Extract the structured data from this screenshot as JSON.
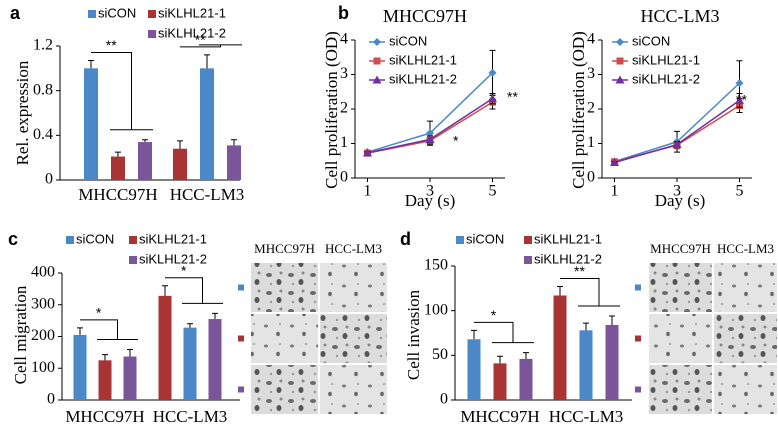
{
  "chart_data": [
    {
      "type": "bar",
      "panel": "a",
      "ylabel": "Rel. expression",
      "categories": [
        "MHCC97H",
        "HCC-LM3"
      ],
      "ylim": [
        0,
        1.2
      ],
      "yticks": [
        0,
        0.4,
        0.8,
        1.2
      ],
      "annotations": [
        "**",
        "**"
      ],
      "series": [
        {
          "name": "siCON",
          "color": "#4a88c7",
          "colors": [
            "#4a88c7",
            "#a83434"
          ],
          "values": [
            1.0,
            0.28
          ],
          "errors": [
            0.07,
            0.07
          ]
        },
        {
          "name": "siKLHL21-1",
          "color": "#a83434",
          "colors": [
            "#a83434",
            "#4a88c7"
          ],
          "values": [
            0.21,
            1.0
          ],
          "errors": [
            0.04,
            0.12
          ]
        },
        {
          "name": "siKLHL21-2",
          "color": "#7b559a",
          "colors": [
            "#7b559a",
            "#7b559a"
          ],
          "values": [
            0.34,
            0.31
          ],
          "errors": [
            0.02,
            0.05
          ]
        }
      ]
    },
    {
      "type": "line",
      "panel": "b",
      "title": "MHCC97H",
      "xlabel": "Day (s)",
      "ylabel": "Cell proliferation (OD)",
      "x": [
        1,
        3,
        5
      ],
      "xlim": [
        0.6,
        5.4
      ],
      "xticks": [
        1,
        3,
        5
      ],
      "ylim": [
        0,
        4
      ],
      "yticks": [
        0,
        1,
        2,
        3,
        4
      ],
      "annotations": [
        "*",
        "**"
      ],
      "series": [
        {
          "name": "siCON",
          "color": "#4a88c7",
          "marker": "diamond",
          "values": [
            0.75,
            1.3,
            3.05
          ],
          "errors": [
            0.05,
            0.35,
            0.65
          ]
        },
        {
          "name": "siKLHL21-1",
          "color": "#d24b4b",
          "marker": "square",
          "values": [
            0.72,
            1.08,
            2.2
          ],
          "errors": [
            0.03,
            0.1,
            0.2
          ]
        },
        {
          "name": "siKLHL21-2",
          "color": "#7030a0",
          "marker": "triangle",
          "values": [
            0.73,
            1.12,
            2.3
          ],
          "errors": [
            0.03,
            0.1,
            0.15
          ]
        }
      ]
    },
    {
      "type": "line",
      "title": "HCC-LM3",
      "xlabel": "Day (s)",
      "ylabel": "Cell proliferation (OD)",
      "x": [
        1,
        3,
        5
      ],
      "xlim": [
        0.6,
        5.4
      ],
      "xticks": [
        1,
        3,
        5
      ],
      "ylim": [
        0,
        4
      ],
      "yticks": [
        0,
        1,
        2,
        3,
        4
      ],
      "annotations": [
        "**"
      ],
      "series": [
        {
          "name": "siCON",
          "color": "#4a88c7",
          "marker": "diamond",
          "values": [
            0.48,
            1.05,
            2.75
          ],
          "errors": [
            0.04,
            0.3,
            0.65
          ]
        },
        {
          "name": "siKLHL21-1",
          "color": "#d24b4b",
          "marker": "square",
          "values": [
            0.47,
            0.95,
            2.1
          ],
          "errors": [
            0.03,
            0.1,
            0.2
          ]
        },
        {
          "name": "siKLHL21-2",
          "color": "#7030a0",
          "marker": "triangle",
          "values": [
            0.45,
            0.97,
            2.25
          ],
          "errors": [
            0.03,
            0.08,
            0.2
          ]
        }
      ]
    },
    {
      "type": "bar",
      "panel": "c",
      "ylabel": "Cell migration",
      "categories": [
        "MHCC97H",
        "HCC-LM3"
      ],
      "ylim": [
        0,
        400
      ],
      "yticks": [
        0,
        100,
        200,
        300,
        400
      ],
      "annotations": [
        "*",
        "*"
      ],
      "image_headers": [
        "MHCC97H",
        "HCC-LM3"
      ],
      "series": [
        {
          "name": "siCON",
          "color": "#4a88c7",
          "colors": [
            "#4a88c7",
            "#a83434"
          ],
          "values": [
            205,
            328
          ],
          "errors": [
            22,
            32
          ]
        },
        {
          "name": "siKLHL21-1",
          "color": "#a83434",
          "colors": [
            "#a83434",
            "#4a88c7"
          ],
          "values": [
            125,
            228
          ],
          "errors": [
            18,
            12
          ]
        },
        {
          "name": "siKLHL21-2",
          "color": "#7b559a",
          "colors": [
            "#7b559a",
            "#7b559a"
          ],
          "values": [
            137,
            255
          ],
          "errors": [
            22,
            18
          ]
        }
      ]
    },
    {
      "type": "bar",
      "panel": "d",
      "ylabel": "Cell invasion",
      "categories": [
        "MHCC97H",
        "HCC-LM3"
      ],
      "ylim": [
        0,
        150
      ],
      "yticks": [
        0,
        50,
        100,
        150
      ],
      "annotations": [
        "*",
        "**"
      ],
      "image_headers": [
        "MHCC97H",
        "HCC-LM3"
      ],
      "series": [
        {
          "name": "siCON",
          "color": "#4a88c7",
          "colors": [
            "#4a88c7",
            "#a83434"
          ],
          "values": [
            68,
            117
          ],
          "errors": [
            10,
            10
          ]
        },
        {
          "name": "siKLHL21-1",
          "color": "#a83434",
          "colors": [
            "#a83434",
            "#4a88c7"
          ],
          "values": [
            41,
            78
          ],
          "errors": [
            8,
            8
          ]
        },
        {
          "name": "siKLHL21-2",
          "color": "#7b559a",
          "colors": [
            "#7b559a",
            "#7b559a"
          ],
          "values": [
            46,
            84
          ],
          "errors": [
            7,
            10
          ]
        }
      ]
    }
  ]
}
